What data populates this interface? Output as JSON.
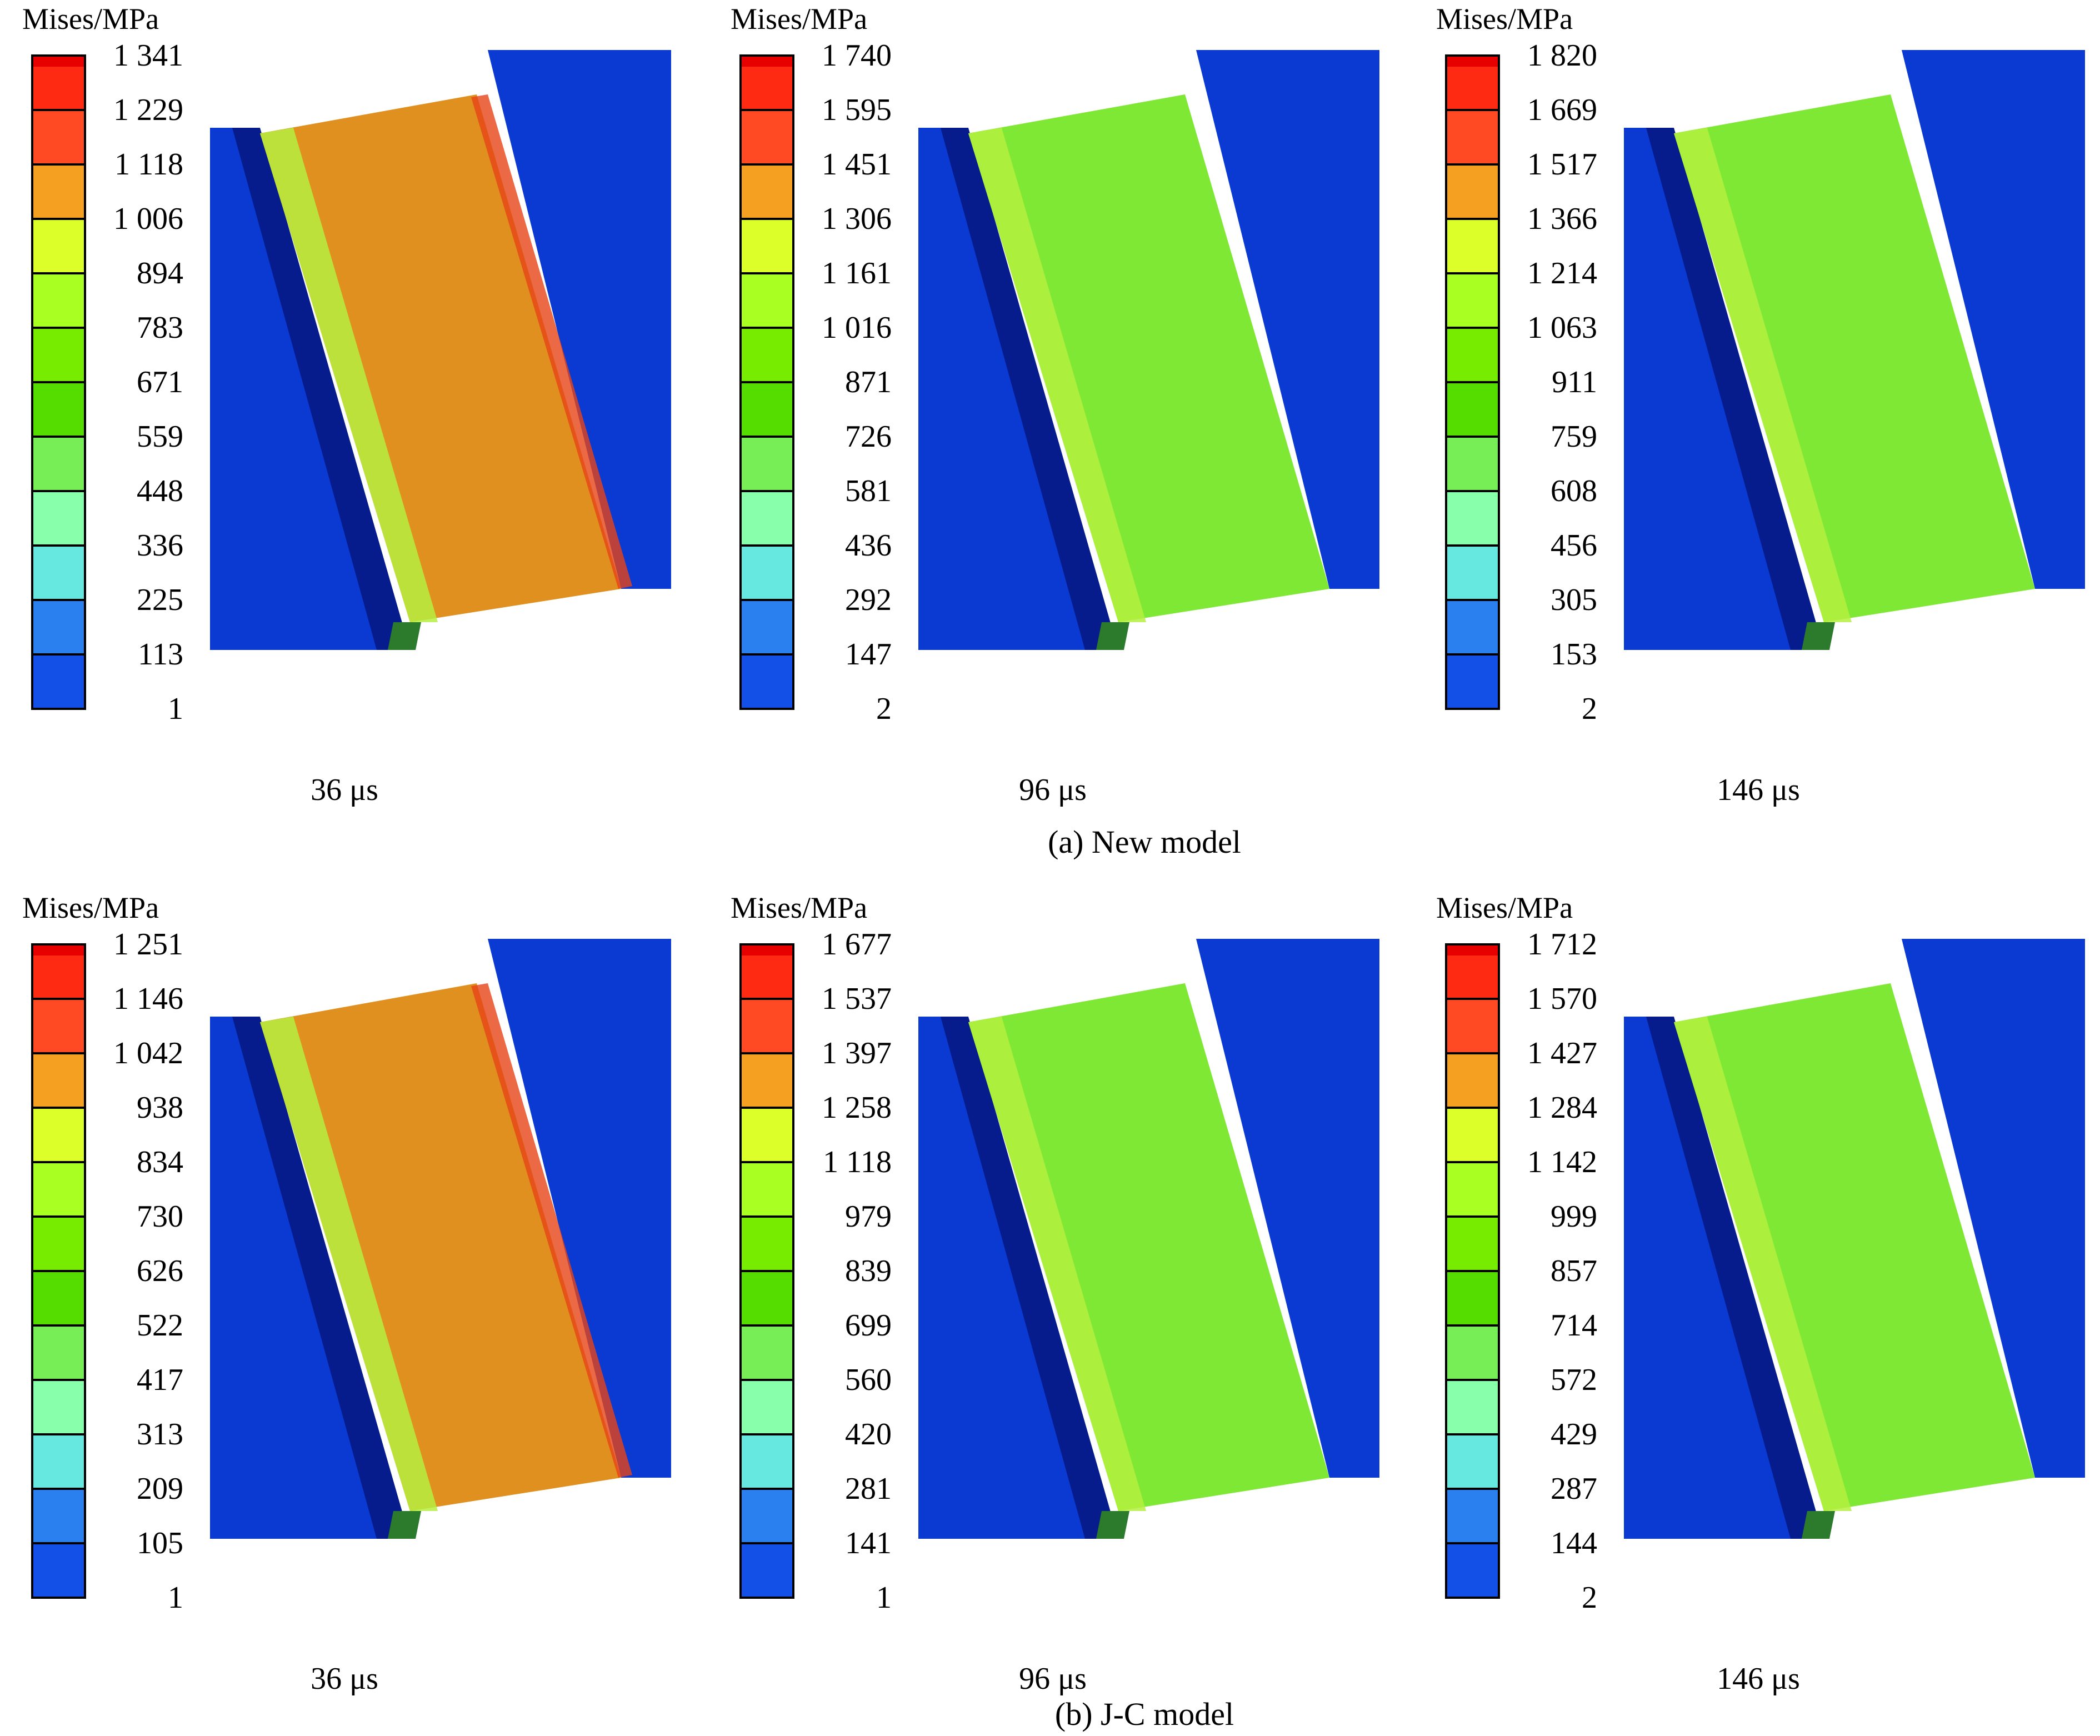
{
  "legend_colors": [
    "#e60000",
    "#ff2a12",
    "#ff4a24",
    "#f5a020",
    "#dcff2a",
    "#aaff22",
    "#77ec00",
    "#55dd00",
    "#77ee55",
    "#88ffaa",
    "#66e8e0",
    "#2b80f0",
    "#1250e8",
    "#0b33d8"
  ],
  "sim_colors": {
    "blue": "#0a3ad2",
    "orange": "#e0901e",
    "green": "#7ee834",
    "light_green": "#b4f040",
    "red": "#e64416",
    "dark_band": "#061c8c"
  },
  "rows": [
    {
      "caption": "(a) New model",
      "panels": [
        {
          "title": "Mises/MPa",
          "time": "36 μs",
          "state": "orange",
          "ticks": [
            "1 341",
            "1 229",
            "1 118",
            "1 006",
            "894",
            "783",
            "671",
            "559",
            "448",
            "336",
            "225",
            "113",
            "1"
          ]
        },
        {
          "title": "Mises/MPa",
          "time": "96 μs",
          "state": "green",
          "ticks": [
            "1 740",
            "1 595",
            "1 451",
            "1 306",
            "1 161",
            "1 016",
            "871",
            "726",
            "581",
            "436",
            "292",
            "147",
            "2"
          ]
        },
        {
          "title": "Mises/MPa",
          "time": "146 μs",
          "state": "green",
          "ticks": [
            "1 820",
            "1 669",
            "1 517",
            "1 366",
            "1 214",
            "1 063",
            "911",
            "759",
            "608",
            "456",
            "305",
            "153",
            "2"
          ]
        }
      ]
    },
    {
      "caption": "(b) J-C model",
      "panels": [
        {
          "title": "Mises/MPa",
          "time": "36 μs",
          "state": "orange",
          "ticks": [
            "1 251",
            "1 146",
            "1 042",
            "938",
            "834",
            "730",
            "626",
            "522",
            "417",
            "313",
            "209",
            "105",
            "1"
          ]
        },
        {
          "title": "Mises/MPa",
          "time": "96 μs",
          "state": "green",
          "ticks": [
            "1 677",
            "1 537",
            "1 397",
            "1 258",
            "1 118",
            "979",
            "839",
            "699",
            "560",
            "420",
            "281",
            "141",
            "1"
          ]
        },
        {
          "title": "Mises/MPa",
          "time": "146 μs",
          "state": "green",
          "ticks": [
            "1 712",
            "1 570",
            "1 427",
            "1 284",
            "1 142",
            "999",
            "857",
            "714",
            "572",
            "429",
            "287",
            "144",
            "2"
          ]
        }
      ]
    }
  ]
}
